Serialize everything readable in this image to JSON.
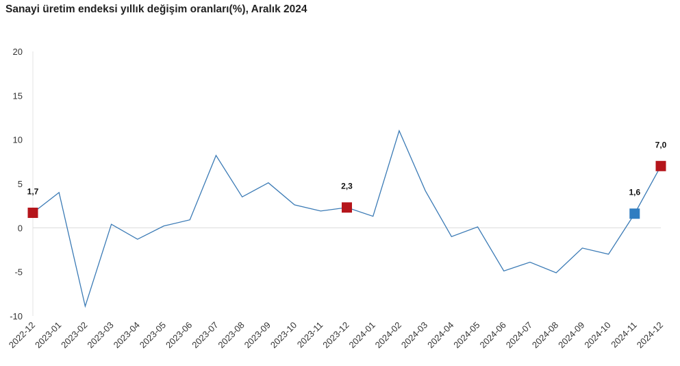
{
  "chart_data": {
    "type": "line",
    "title": "Sanayi üretim endeksi yıllık değişim oranları(%), Aralık 2024",
    "xlabel": "",
    "ylabel": "",
    "ylim": [
      -10,
      20
    ],
    "yticks": [
      20,
      15,
      10,
      5,
      0,
      -5,
      -10
    ],
    "grid": "zero-line only",
    "categories": [
      "2022-12",
      "2023-01",
      "2023-02",
      "2023-03",
      "2023-04",
      "2023-05",
      "2023-06",
      "2023-07",
      "2023-08",
      "2023-09",
      "2023-10",
      "2023-11",
      "2023-12",
      "2024-01",
      "2024-02",
      "2024-03",
      "2024-04",
      "2024-05",
      "2024-06",
      "2024-07",
      "2024-08",
      "2024-09",
      "2024-10",
      "2024-11",
      "2024-12"
    ],
    "values": [
      1.7,
      4.0,
      -8.9,
      0.4,
      -1.3,
      0.2,
      0.9,
      8.2,
      3.5,
      5.1,
      2.6,
      1.9,
      2.3,
      1.3,
      11.0,
      4.2,
      -1.0,
      0.1,
      -4.9,
      -3.9,
      -5.1,
      -2.3,
      -3.0,
      1.6,
      7.0
    ],
    "line_color": "#3a7ab5",
    "highlights": [
      {
        "index": 0,
        "label": "1,7",
        "color": "#b5151b"
      },
      {
        "index": 12,
        "label": "2,3",
        "color": "#b5151b"
      },
      {
        "index": 23,
        "label": "1,6",
        "color": "#2f7dc1"
      },
      {
        "index": 24,
        "label": "7,0",
        "color": "#b5151b"
      }
    ]
  }
}
